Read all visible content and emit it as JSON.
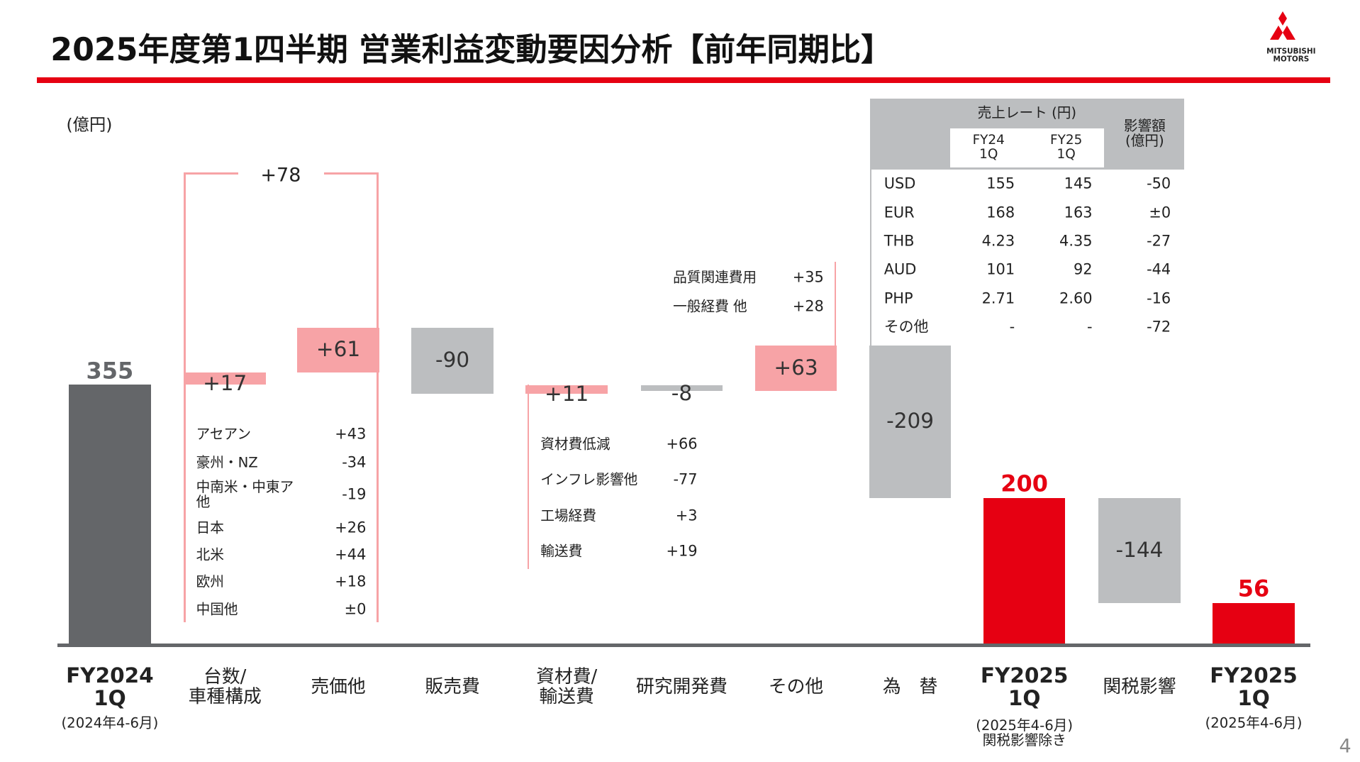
{
  "title": "2025年度第1四半期 営業利益変動要因分析【前年同期比】",
  "logo": "MITSUBISHI\nMOTORS",
  "page_number": "4",
  "chart_data": {
    "type": "waterfall",
    "unit": "(億円)",
    "categories": [
      "FY2024\n1Q",
      "台数/\n車種構成",
      "売価他",
      "販売費",
      "資材費/\n輸送費",
      "研究開発費",
      "その他",
      "為　替",
      "FY2025\n1Q",
      "関税影響",
      "FY2025\n1Q"
    ],
    "category_notes": [
      "(2024年4-6月)",
      null,
      null,
      null,
      null,
      null,
      null,
      null,
      "(2025年4-6月)\n関税影響除き",
      null,
      "(2025年4-6月)"
    ],
    "values": [
      355,
      17,
      61,
      -90,
      11,
      -8,
      63,
      -209,
      200,
      -144,
      56
    ],
    "value_labels": [
      "355",
      "+17",
      "+61",
      "-90",
      "+11",
      "-8",
      "+63",
      "-209",
      "200",
      "-144",
      "56"
    ],
    "colors": [
      "#646669",
      "#f7a3a6",
      "#f7a3a6",
      "#bcbec0",
      "#f7a3a6",
      "#bcbec0",
      "#f7a3a6",
      "#bcbec0",
      "#e60012",
      "#bcbec0",
      "#e60012"
    ],
    "bracket_label": "+78",
    "breakdowns": [
      {
        "items": [
          {
            "label": "アセアン",
            "value": "+43"
          },
          {
            "label": "豪州・NZ",
            "value": "-34"
          },
          {
            "label": "中南米・中東ア\n他",
            "value": "-19"
          },
          {
            "label": "日本",
            "value": "+26"
          },
          {
            "label": "北米",
            "value": "+44"
          },
          {
            "label": "欧州",
            "value": "+18"
          },
          {
            "label": "中国他",
            "value": "±0"
          }
        ]
      },
      {
        "items": [
          {
            "label": "資材費低減",
            "value": "+66"
          },
          {
            "label": "インフレ影響他",
            "value": "-77"
          },
          {
            "label": "工場経費",
            "value": "+3"
          },
          {
            "label": "輸送費",
            "value": "+19"
          }
        ]
      },
      {
        "items": [
          {
            "label": "品質関連費用",
            "value": "+35"
          },
          {
            "label": "一般経費 他",
            "value": "+28"
          }
        ]
      }
    ]
  },
  "table": {
    "group_header": "売上レート (円)",
    "col_headers": [
      "FY24\n1Q",
      "FY25\n1Q"
    ],
    "impact_header": "影響額\n(億円)",
    "rows": [
      [
        "USD",
        "155",
        "145",
        "-50"
      ],
      [
        "EUR",
        "168",
        "163",
        "±0"
      ],
      [
        "THB",
        "4.23",
        "4.35",
        "-27"
      ],
      [
        "AUD",
        "101",
        "92",
        "-44"
      ],
      [
        "PHP",
        "2.71",
        "2.60",
        "-16"
      ],
      [
        "その他",
        "-",
        "-",
        "-72"
      ]
    ]
  }
}
